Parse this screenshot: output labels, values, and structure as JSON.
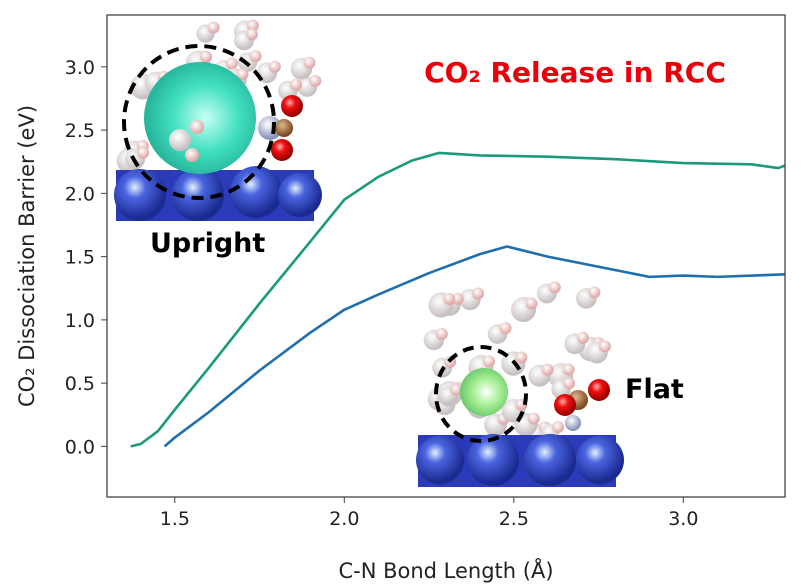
{
  "chart_data": {
    "type": "line",
    "title": "CO₂ Release in RCC",
    "xlabel": "C-N Bond Length (Å)",
    "ylabel": "CO₂ Dissociation Barrier (eV)",
    "xlim": [
      1.3,
      3.3
    ],
    "ylim": [
      -0.4,
      3.41
    ],
    "xticks": [
      "1.5",
      "2.0",
      "2.5",
      "3.0"
    ],
    "yticks": [
      "0.0",
      "0.5",
      "1.0",
      "1.5",
      "2.0",
      "2.5",
      "3.0"
    ],
    "grid": false,
    "series": [
      {
        "name": "Upright",
        "color": "#1a9a7a",
        "x": [
          1.37,
          1.4,
          1.45,
          1.5,
          1.6,
          1.75,
          1.9,
          2.0,
          2.1,
          2.2,
          2.28,
          2.4,
          2.6,
          2.8,
          3.0,
          3.2,
          3.28,
          3.3
        ],
        "y": [
          0.0,
          0.02,
          0.12,
          0.29,
          0.62,
          1.13,
          1.62,
          1.95,
          2.13,
          2.26,
          2.32,
          2.3,
          2.29,
          2.27,
          2.24,
          2.23,
          2.2,
          2.22
        ]
      },
      {
        "name": "Flat",
        "color": "#1f6fae",
        "x": [
          1.47,
          1.5,
          1.6,
          1.75,
          1.9,
          2.0,
          2.1,
          2.25,
          2.4,
          2.48,
          2.6,
          2.75,
          2.9,
          3.0,
          3.1,
          3.3
        ],
        "y": [
          0.0,
          0.07,
          0.27,
          0.6,
          0.9,
          1.08,
          1.2,
          1.37,
          1.52,
          1.58,
          1.5,
          1.42,
          1.34,
          1.35,
          1.34,
          1.36
        ]
      }
    ],
    "annotations": {
      "upright": "Upright",
      "flat": "Flat"
    }
  },
  "colors": {
    "title": "#e8000b",
    "text": "#222222"
  }
}
